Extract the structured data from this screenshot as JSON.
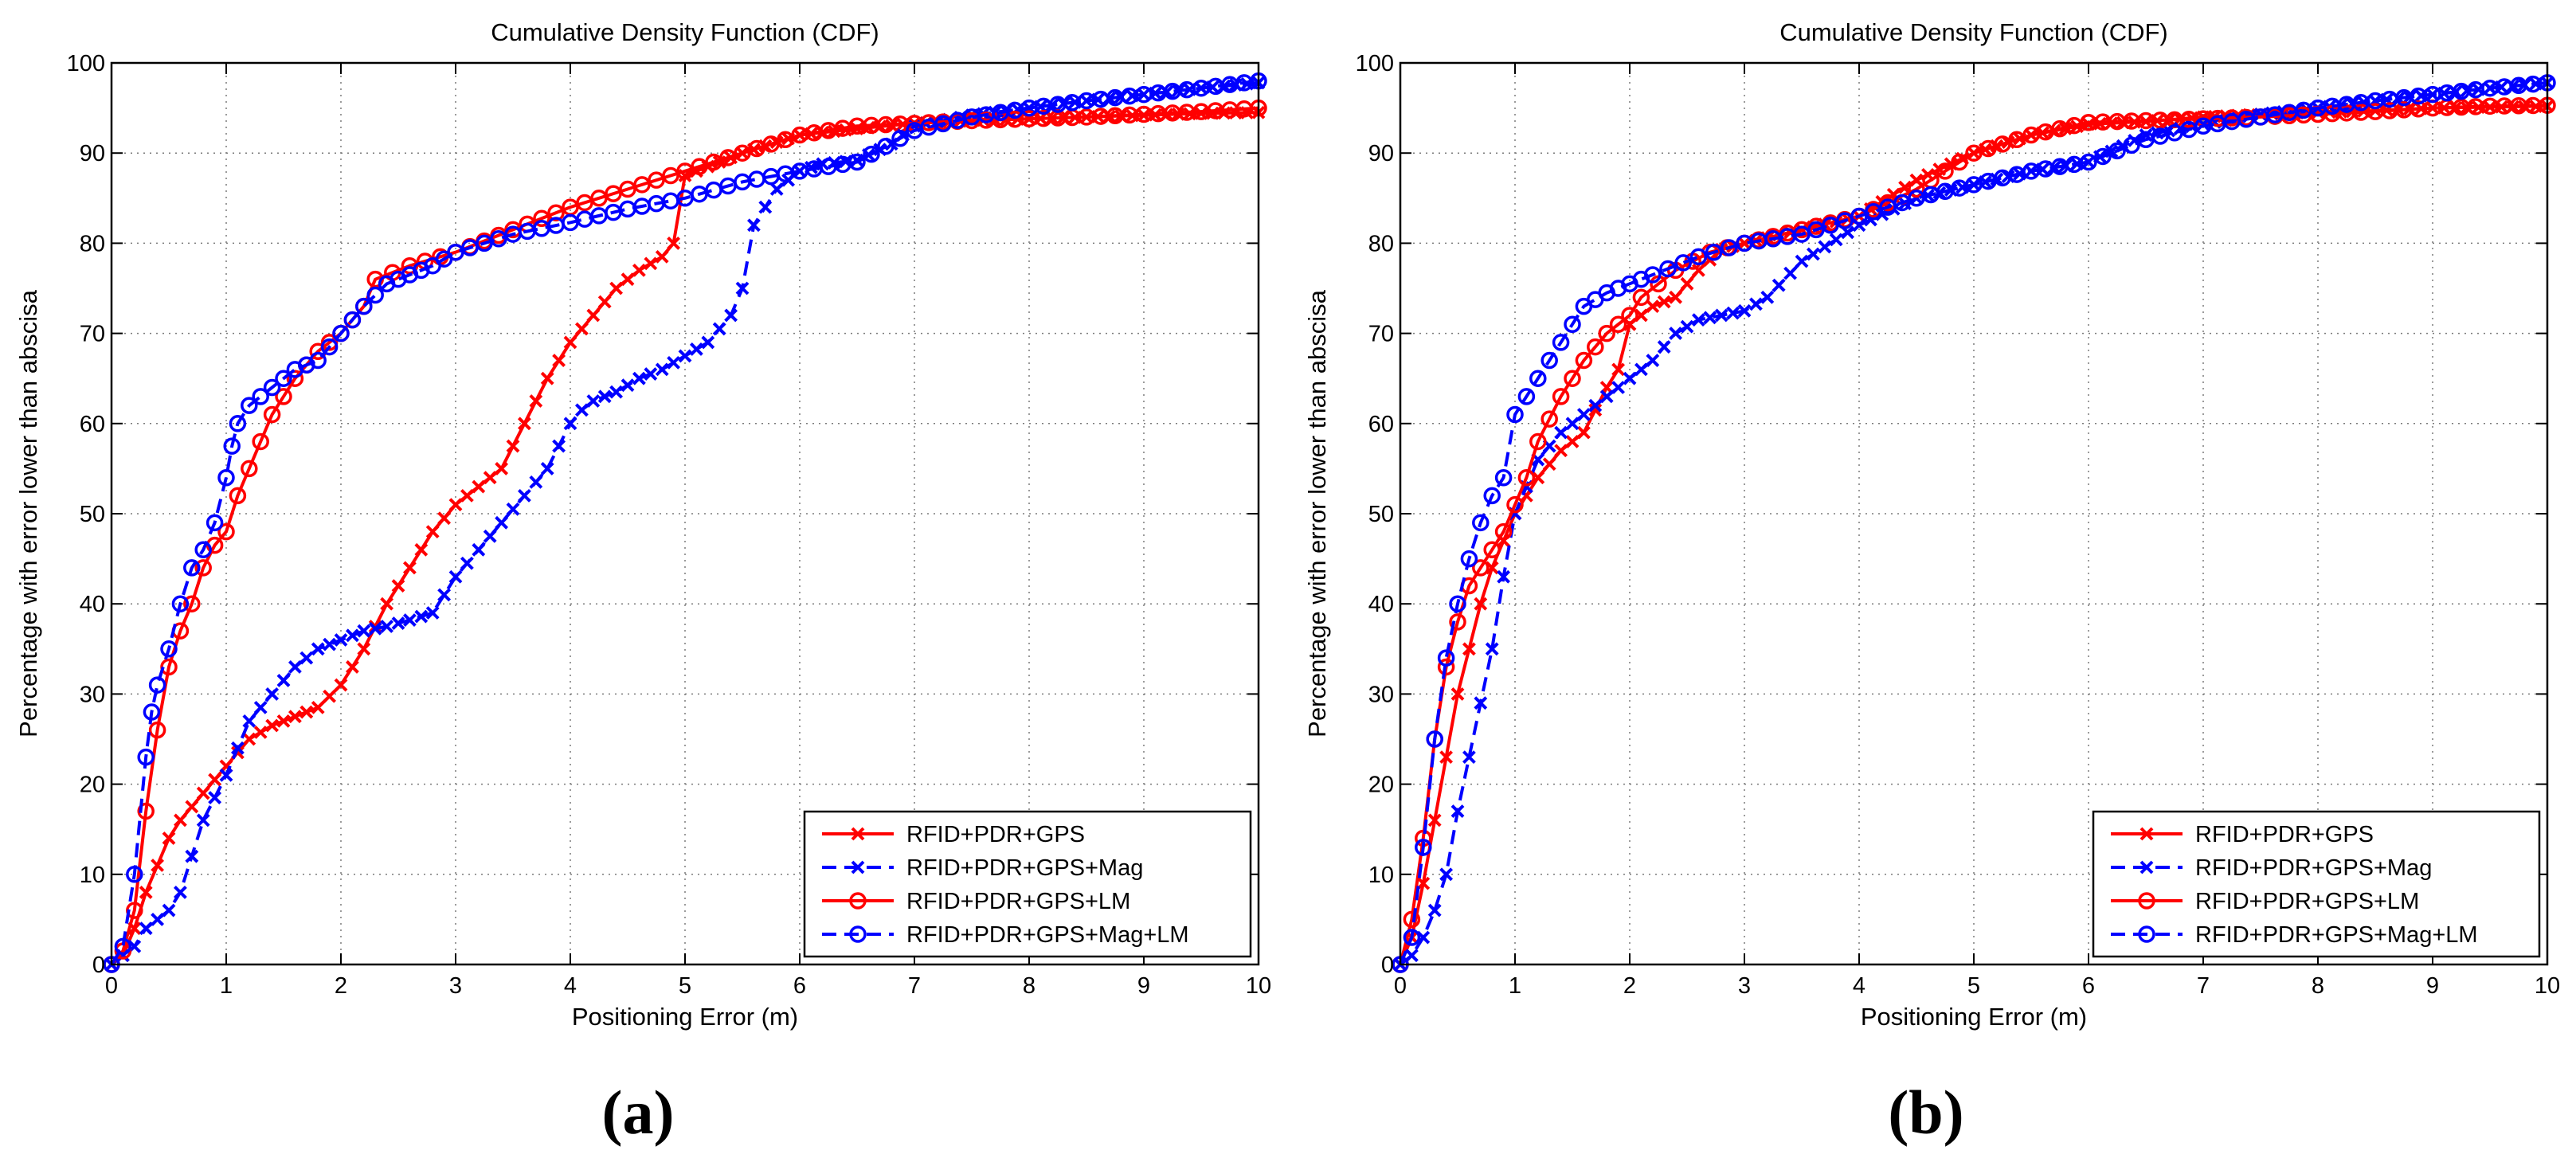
{
  "colors": {
    "red": "#ff0000",
    "blue": "#0000ff",
    "grid": "#7a7a7a",
    "axis": "#000000"
  },
  "panels": [
    {
      "label": "(a)"
    },
    {
      "label": "(b)"
    }
  ],
  "chart_data": [
    {
      "type": "line",
      "title": "Cumulative Density Function (CDF)",
      "xlabel": "Positioning Error (m)",
      "ylabel": "Percentage with error lower than abscisa",
      "xlim": [
        0,
        10
      ],
      "ylim": [
        0,
        100
      ],
      "xticks": [
        0,
        1,
        2,
        3,
        4,
        5,
        6,
        7,
        8,
        9,
        10
      ],
      "yticks": [
        0,
        10,
        20,
        30,
        40,
        50,
        60,
        70,
        80,
        90,
        100
      ],
      "grid": true,
      "legend_position": "bottom-right",
      "series": [
        {
          "name": "RFID+PDR+GPS",
          "color": "red",
          "dash": "solid",
          "marker": "x",
          "x": [
            0,
            0.1,
            0.2,
            0.3,
            0.4,
            0.5,
            0.6,
            0.7,
            0.8,
            0.9,
            1.0,
            1.2,
            1.4,
            1.6,
            1.8,
            2.0,
            2.2,
            2.4,
            2.6,
            2.8,
            3.0,
            3.2,
            3.4,
            3.6,
            3.8,
            4.0,
            4.2,
            4.4,
            4.6,
            4.8,
            4.9,
            5.0,
            5.5,
            6.0,
            6.5,
            7.0,
            7.5,
            8.0,
            8.5,
            9.0,
            9.5,
            10.0
          ],
          "y": [
            0,
            1,
            4,
            8,
            11,
            14,
            16,
            17.5,
            19,
            20.5,
            22,
            25,
            26.5,
            27.5,
            28.5,
            31,
            35,
            40,
            44,
            48,
            51,
            53,
            55,
            60,
            65,
            69,
            72,
            75,
            77,
            78.5,
            80,
            87.5,
            90,
            92,
            92.7,
            93.3,
            93.6,
            93.8,
            94,
            94.2,
            94.4,
            94.5
          ]
        },
        {
          "name": "RFID+PDR+GPS+Mag",
          "color": "blue",
          "dash": "dashed",
          "marker": "x",
          "x": [
            0,
            0.2,
            0.3,
            0.4,
            0.5,
            0.6,
            0.7,
            0.8,
            0.9,
            1.0,
            1.1,
            1.2,
            1.4,
            1.6,
            1.8,
            2.0,
            2.2,
            2.4,
            2.6,
            2.8,
            3.0,
            3.2,
            3.4,
            3.6,
            3.8,
            4.0,
            4.1,
            4.2,
            4.4,
            4.6,
            4.8,
            5.0,
            5.2,
            5.4,
            5.5,
            5.6,
            5.8,
            6.0,
            6.2,
            6.5,
            6.8,
            7.0,
            7.5,
            8.0,
            8.5,
            9.0,
            9.5,
            10.0
          ],
          "y": [
            0,
            2,
            4,
            5,
            6,
            8,
            12,
            16,
            18.5,
            21,
            24,
            27,
            30,
            33,
            35,
            36,
            37,
            37.5,
            38.2,
            39,
            43,
            46,
            49,
            52,
            55,
            60,
            61.5,
            62.5,
            63.5,
            65,
            66,
            67.5,
            69,
            72,
            75,
            82,
            86,
            88,
            88.8,
            89.2,
            91,
            93,
            94.2,
            95,
            95.8,
            96.5,
            97.2,
            97.8
          ]
        },
        {
          "name": "RFID+PDR+GPS+LM",
          "color": "red",
          "dash": "solid",
          "marker": "o",
          "x": [
            0,
            0.1,
            0.2,
            0.3,
            0.4,
            0.5,
            0.6,
            0.7,
            0.8,
            0.9,
            1.0,
            1.1,
            1.2,
            1.4,
            1.6,
            1.8,
            2.0,
            2.2,
            2.3,
            2.6,
            3.0,
            3.5,
            4.0,
            4.5,
            5.0,
            5.5,
            6.0,
            6.5,
            7.0,
            7.5,
            8.0,
            8.5,
            9.0,
            9.5,
            10.0
          ],
          "y": [
            0,
            1.5,
            6,
            17,
            26,
            33,
            37,
            40,
            44,
            46.5,
            48,
            52,
            55,
            61,
            65,
            68,
            70,
            73,
            76,
            77.5,
            79,
            81.5,
            84,
            86,
            88,
            90,
            92,
            93,
            93.3,
            93.6,
            93.8,
            94,
            94.3,
            94.6,
            95
          ]
        },
        {
          "name": "RFID+PDR+GPS+Mag+LM",
          "color": "blue",
          "dash": "dashed",
          "marker": "o",
          "x": [
            0,
            0.1,
            0.2,
            0.3,
            0.35,
            0.4,
            0.5,
            0.6,
            0.7,
            0.8,
            0.9,
            1.0,
            1.05,
            1.1,
            1.2,
            1.4,
            1.6,
            1.8,
            2.0,
            2.2,
            2.4,
            2.6,
            2.8,
            3.0,
            3.5,
            4.0,
            4.5,
            5.0,
            5.5,
            6.0,
            6.5,
            7.0,
            7.5,
            8.0,
            8.5,
            9.0,
            9.5,
            10.0
          ],
          "y": [
            0,
            2,
            10,
            23,
            28,
            31,
            35,
            40,
            44,
            46,
            49,
            54,
            57.5,
            60,
            62,
            64,
            66,
            67,
            70,
            73,
            75.5,
            76.5,
            77.5,
            79,
            81,
            82.3,
            83.8,
            85,
            86.8,
            88,
            89,
            92.5,
            94,
            95,
            95.8,
            96.5,
            97.2,
            98
          ]
        }
      ]
    },
    {
      "type": "line",
      "title": "Cumulative Density Function (CDF)",
      "xlabel": "Positioning Error (m)",
      "ylabel": "Percentage with error lower than abscisa",
      "xlim": [
        0,
        10
      ],
      "ylim": [
        0,
        100
      ],
      "xticks": [
        0,
        1,
        2,
        3,
        4,
        5,
        6,
        7,
        8,
        9,
        10
      ],
      "yticks": [
        0,
        10,
        20,
        30,
        40,
        50,
        60,
        70,
        80,
        90,
        100
      ],
      "grid": true,
      "legend_position": "bottom-right",
      "series": [
        {
          "name": "RFID+PDR+GPS",
          "color": "red",
          "dash": "solid",
          "marker": "x",
          "x": [
            0,
            0.1,
            0.2,
            0.3,
            0.4,
            0.5,
            0.6,
            0.7,
            0.8,
            0.9,
            1.0,
            1.2,
            1.4,
            1.6,
            1.8,
            1.9,
            2.0,
            2.2,
            2.4,
            2.6,
            2.8,
            3.0,
            3.5,
            4.0,
            4.5,
            5.0,
            5.5,
            6.0,
            6.5,
            7.0,
            7.5,
            8.0,
            8.5,
            9.0,
            9.5,
            10.0
          ],
          "y": [
            0,
            3,
            9,
            16,
            23,
            30,
            35,
            40,
            44,
            47,
            50,
            54,
            57,
            59,
            64,
            66,
            71,
            73,
            74,
            77,
            79.3,
            80,
            81.5,
            83,
            87,
            90,
            92,
            93.2,
            93.5,
            94,
            94.3,
            94.5,
            94.7,
            95,
            95.1,
            95.2
          ]
        },
        {
          "name": "RFID+PDR+GPS+Mag",
          "color": "blue",
          "dash": "dashed",
          "marker": "x",
          "x": [
            0,
            0.1,
            0.2,
            0.3,
            0.4,
            0.5,
            0.6,
            0.7,
            0.8,
            0.9,
            1.0,
            1.2,
            1.4,
            1.6,
            1.8,
            2.0,
            2.2,
            2.4,
            2.6,
            2.8,
            3.0,
            3.2,
            3.5,
            4.0,
            4.5,
            5.0,
            5.5,
            6.0,
            6.5,
            7.0,
            7.5,
            8.0,
            8.5,
            9.0,
            9.5,
            10.0
          ],
          "y": [
            0,
            1,
            3,
            6,
            10,
            17,
            23,
            29,
            35,
            43,
            50,
            56,
            59,
            61,
            63,
            65,
            67,
            70,
            71.5,
            72,
            72.5,
            74,
            78,
            82,
            85,
            86.5,
            88,
            89,
            92,
            93.2,
            94.3,
            95,
            95.8,
            96.5,
            97.2,
            97.8
          ]
        },
        {
          "name": "RFID+PDR+GPS+LM",
          "color": "red",
          "dash": "solid",
          "marker": "o",
          "x": [
            0,
            0.1,
            0.2,
            0.3,
            0.4,
            0.5,
            0.6,
            0.7,
            0.8,
            0.9,
            1.0,
            1.1,
            1.2,
            1.4,
            1.6,
            1.8,
            2.0,
            2.1,
            2.4,
            2.7,
            3.0,
            3.5,
            4.0,
            4.5,
            5.0,
            5.5,
            6.0,
            6.5,
            7.0,
            7.5,
            8.0,
            8.5,
            9.0,
            9.5,
            10.0
          ],
          "y": [
            0,
            5,
            14,
            25,
            33,
            38,
            42,
            44,
            46,
            48,
            51,
            54,
            58,
            63,
            67,
            70,
            72,
            74,
            77,
            79,
            80,
            81.5,
            83,
            86,
            90,
            92,
            93.4,
            93.6,
            93.8,
            94,
            94.3,
            94.6,
            95,
            95.2,
            95.3
          ]
        },
        {
          "name": "RFID+PDR+GPS+Mag+LM",
          "color": "blue",
          "dash": "dashed",
          "marker": "o",
          "x": [
            0,
            0.1,
            0.2,
            0.3,
            0.4,
            0.5,
            0.6,
            0.7,
            0.8,
            0.9,
            1.0,
            1.1,
            1.2,
            1.4,
            1.6,
            1.8,
            2.0,
            2.2,
            2.6,
            3.0,
            3.5,
            4.0,
            4.5,
            5.0,
            5.5,
            6.0,
            6.5,
            7.0,
            7.5,
            8.0,
            8.5,
            9.0,
            9.5,
            10.0
          ],
          "y": [
            0,
            3,
            13,
            25,
            34,
            40,
            45,
            49,
            52,
            54,
            61,
            63,
            65,
            69,
            73,
            74.5,
            75.5,
            76.5,
            78.5,
            80,
            81,
            83,
            85,
            86.5,
            88,
            89,
            91.5,
            93,
            94,
            95,
            95.8,
            96.5,
            97.2,
            97.8
          ]
        }
      ]
    }
  ]
}
